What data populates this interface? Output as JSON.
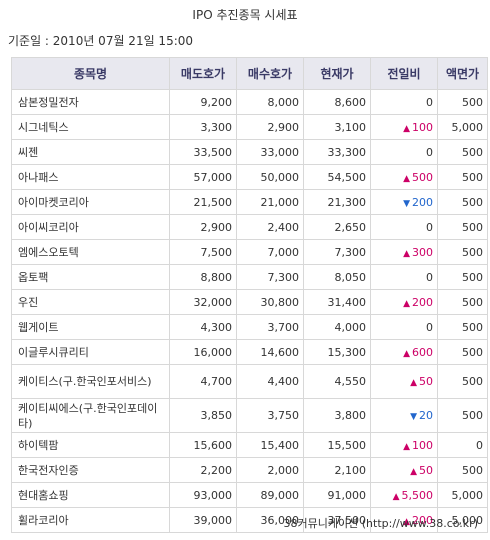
{
  "title": "IPO 추진종목 시세표",
  "asof": "기준일 : 2010년 07월 21일 15:00",
  "columns": [
    "종목명",
    "매도호가",
    "매수호가",
    "현재가",
    "전일비",
    "액면가"
  ],
  "colors": {
    "up": "#cc0066",
    "down": "#2266cc",
    "header_bg": "#e8e8ef"
  },
  "rows": [
    {
      "name": "삼본정밀전자",
      "ask": "9,200",
      "bid": "8,000",
      "price": "8,600",
      "dir": "",
      "change": "0",
      "par": "500"
    },
    {
      "name": "시그네틱스",
      "ask": "3,300",
      "bid": "2,900",
      "price": "3,100",
      "dir": "up",
      "change": "100",
      "par": "5,000"
    },
    {
      "name": "씨젠",
      "ask": "33,500",
      "bid": "33,000",
      "price": "33,300",
      "dir": "",
      "change": "0",
      "par": "500"
    },
    {
      "name": "아나패스",
      "ask": "57,000",
      "bid": "50,000",
      "price": "54,500",
      "dir": "up",
      "change": "500",
      "par": "500"
    },
    {
      "name": "아이마켓코리아",
      "ask": "21,500",
      "bid": "21,000",
      "price": "21,300",
      "dir": "down",
      "change": "200",
      "par": "500"
    },
    {
      "name": "아이씨코리아",
      "ask": "2,900",
      "bid": "2,400",
      "price": "2,650",
      "dir": "",
      "change": "0",
      "par": "500"
    },
    {
      "name": "엠에스오토텍",
      "ask": "7,500",
      "bid": "7,000",
      "price": "7,300",
      "dir": "up",
      "change": "300",
      "par": "500"
    },
    {
      "name": "옵토팩",
      "ask": "8,800",
      "bid": "7,300",
      "price": "8,050",
      "dir": "",
      "change": "0",
      "par": "500"
    },
    {
      "name": "우진",
      "ask": "32,000",
      "bid": "30,800",
      "price": "31,400",
      "dir": "up",
      "change": "200",
      "par": "500"
    },
    {
      "name": "웹게이트",
      "ask": "4,300",
      "bid": "3,700",
      "price": "4,000",
      "dir": "",
      "change": "0",
      "par": "500"
    },
    {
      "name": "이글루시큐리티",
      "ask": "16,000",
      "bid": "14,600",
      "price": "15,300",
      "dir": "up",
      "change": "600",
      "par": "500"
    },
    {
      "name": "케이티스(구.한국인포서비스)",
      "ask": "4,700",
      "bid": "4,400",
      "price": "4,550",
      "dir": "up",
      "change": "50",
      "par": "500"
    },
    {
      "name": "케이티씨에스(구.한국인포데이타)",
      "ask": "3,850",
      "bid": "3,750",
      "price": "3,800",
      "dir": "down",
      "change": "20",
      "par": "500"
    },
    {
      "name": "하이텍팜",
      "ask": "15,600",
      "bid": "15,400",
      "price": "15,500",
      "dir": "up",
      "change": "100",
      "par": "0"
    },
    {
      "name": "한국전자인증",
      "ask": "2,200",
      "bid": "2,000",
      "price": "2,100",
      "dir": "up",
      "change": "50",
      "par": "500"
    },
    {
      "name": "현대홈쇼핑",
      "ask": "93,000",
      "bid": "89,000",
      "price": "91,000",
      "dir": "up",
      "change": "5,500",
      "par": "5,000"
    },
    {
      "name": "휠라코리아",
      "ask": "39,000",
      "bid": "36,000",
      "price": "37,500",
      "dir": "up",
      "change": "200",
      "par": "5,000"
    }
  ],
  "source": "38커뮤니케이션 (http://www.38.co.kr)"
}
